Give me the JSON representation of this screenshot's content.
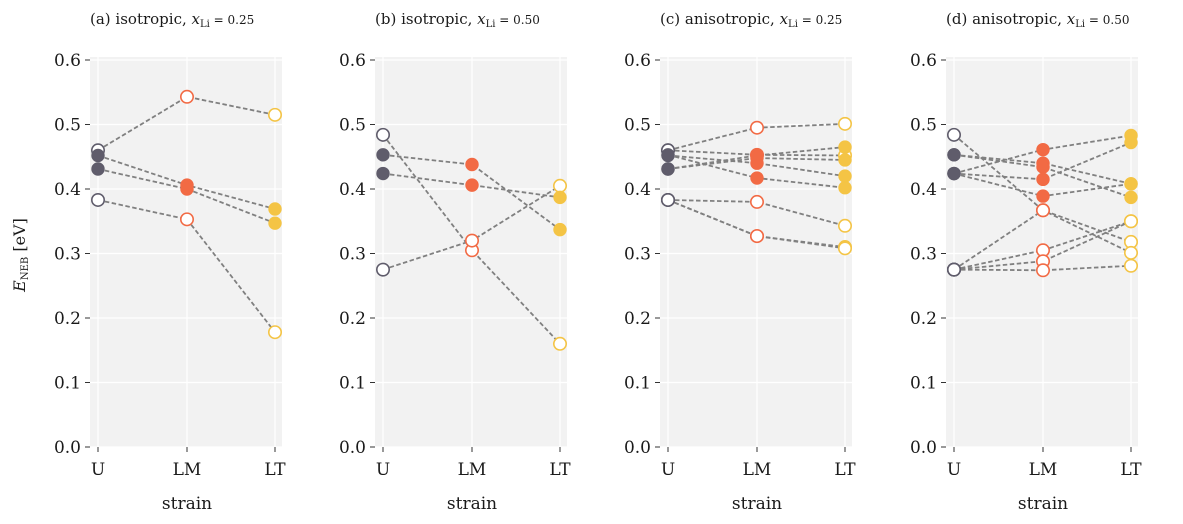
{
  "colors": {
    "U": "#5f5c6b",
    "LM": "#f26a44",
    "LT": "#f4c445",
    "connector": "#808080",
    "background": "#f2f2f2"
  },
  "chart_data": {
    "type": "scatter",
    "ylabel": "E",
    "ylabel_sub": "NEB",
    "ylabel_unit": " [eV]",
    "xlabel": "strain",
    "categories": [
      "U",
      "LM",
      "LT"
    ],
    "ylim": [
      0.0,
      0.6
    ],
    "yticks": [
      "0.0",
      "0.1",
      "0.2",
      "0.3",
      "0.4",
      "0.5",
      "0.6"
    ],
    "grid": true,
    "panels": [
      {
        "title": "(a) isotropic,",
        "x_var": "x",
        "x_sub": "Li",
        "x_val": " = 0.25",
        "series": [
          {
            "values": [
              0.452,
              0.406,
              0.369
            ],
            "filled": true
          },
          {
            "values": [
              0.431,
              0.4,
              0.347
            ],
            "filled": true
          },
          {
            "values": [
              0.46,
              0.543,
              0.515
            ],
            "filled": false
          },
          {
            "values": [
              0.383,
              0.353,
              0.178
            ],
            "filled": false
          }
        ]
      },
      {
        "title": "(b) isotropic,",
        "x_var": "x",
        "x_sub": "Li",
        "x_val": " = 0.50",
        "series": [
          {
            "values": [
              0.453,
              0.438,
              0.337
            ],
            "filled": true
          },
          {
            "values": [
              0.424,
              0.406,
              0.387
            ],
            "filled": true
          },
          {
            "values": [
              0.484,
              0.305,
              0.16
            ],
            "filled": false
          },
          {
            "values": [
              0.275,
              0.32,
              0.405
            ],
            "filled": false
          }
        ]
      },
      {
        "title": "(c) anisotropic,",
        "x_var": "x",
        "x_sub": "Li",
        "x_val": " = 0.25",
        "series": [
          {
            "values": [
              0.453,
              0.417,
              0.402
            ],
            "filled": true
          },
          {
            "values": [
              0.452,
              0.44,
              0.42
            ],
            "filled": true
          },
          {
            "values": [
              0.431,
              0.448,
              0.445
            ],
            "filled": true
          },
          {
            "values": [
              0.431,
              0.452,
              0.465
            ],
            "filled": true
          },
          {
            "values": [
              0.46,
              0.495,
              0.501
            ],
            "filled": false
          },
          {
            "values": [
              0.46,
              0.453,
              0.452
            ],
            "filled": false
          },
          {
            "values": [
              0.383,
              0.38,
              0.343
            ],
            "filled": false
          },
          {
            "values": [
              0.383,
              0.327,
              0.31
            ],
            "filled": false
          },
          {
            "values": [
              0.383,
              0.327,
              0.308
            ],
            "filled": false
          }
        ]
      },
      {
        "title": "(d) anisotropic,",
        "x_var": "x",
        "x_sub": "Li",
        "x_val": " = 0.50",
        "series": [
          {
            "values": [
              0.453,
              0.44,
              0.408
            ],
            "filled": true
          },
          {
            "values": [
              0.453,
              0.434,
              0.387
            ],
            "filled": true
          },
          {
            "values": [
              0.424,
              0.461,
              0.483
            ],
            "filled": true
          },
          {
            "values": [
              0.424,
              0.415,
              0.472
            ],
            "filled": true
          },
          {
            "values": [
              0.424,
              0.389,
              0.408
            ],
            "filled": true
          },
          {
            "values": [
              0.484,
              0.367,
              0.318
            ],
            "filled": false
          },
          {
            "values": [
              0.275,
              0.367,
              0.301
            ],
            "filled": false
          },
          {
            "values": [
              0.275,
              0.305,
              0.35
            ],
            "filled": false
          },
          {
            "values": [
              0.275,
              0.288,
              0.35
            ],
            "filled": false
          },
          {
            "values": [
              0.275,
              0.274,
              0.281
            ],
            "filled": false
          }
        ]
      }
    ]
  }
}
